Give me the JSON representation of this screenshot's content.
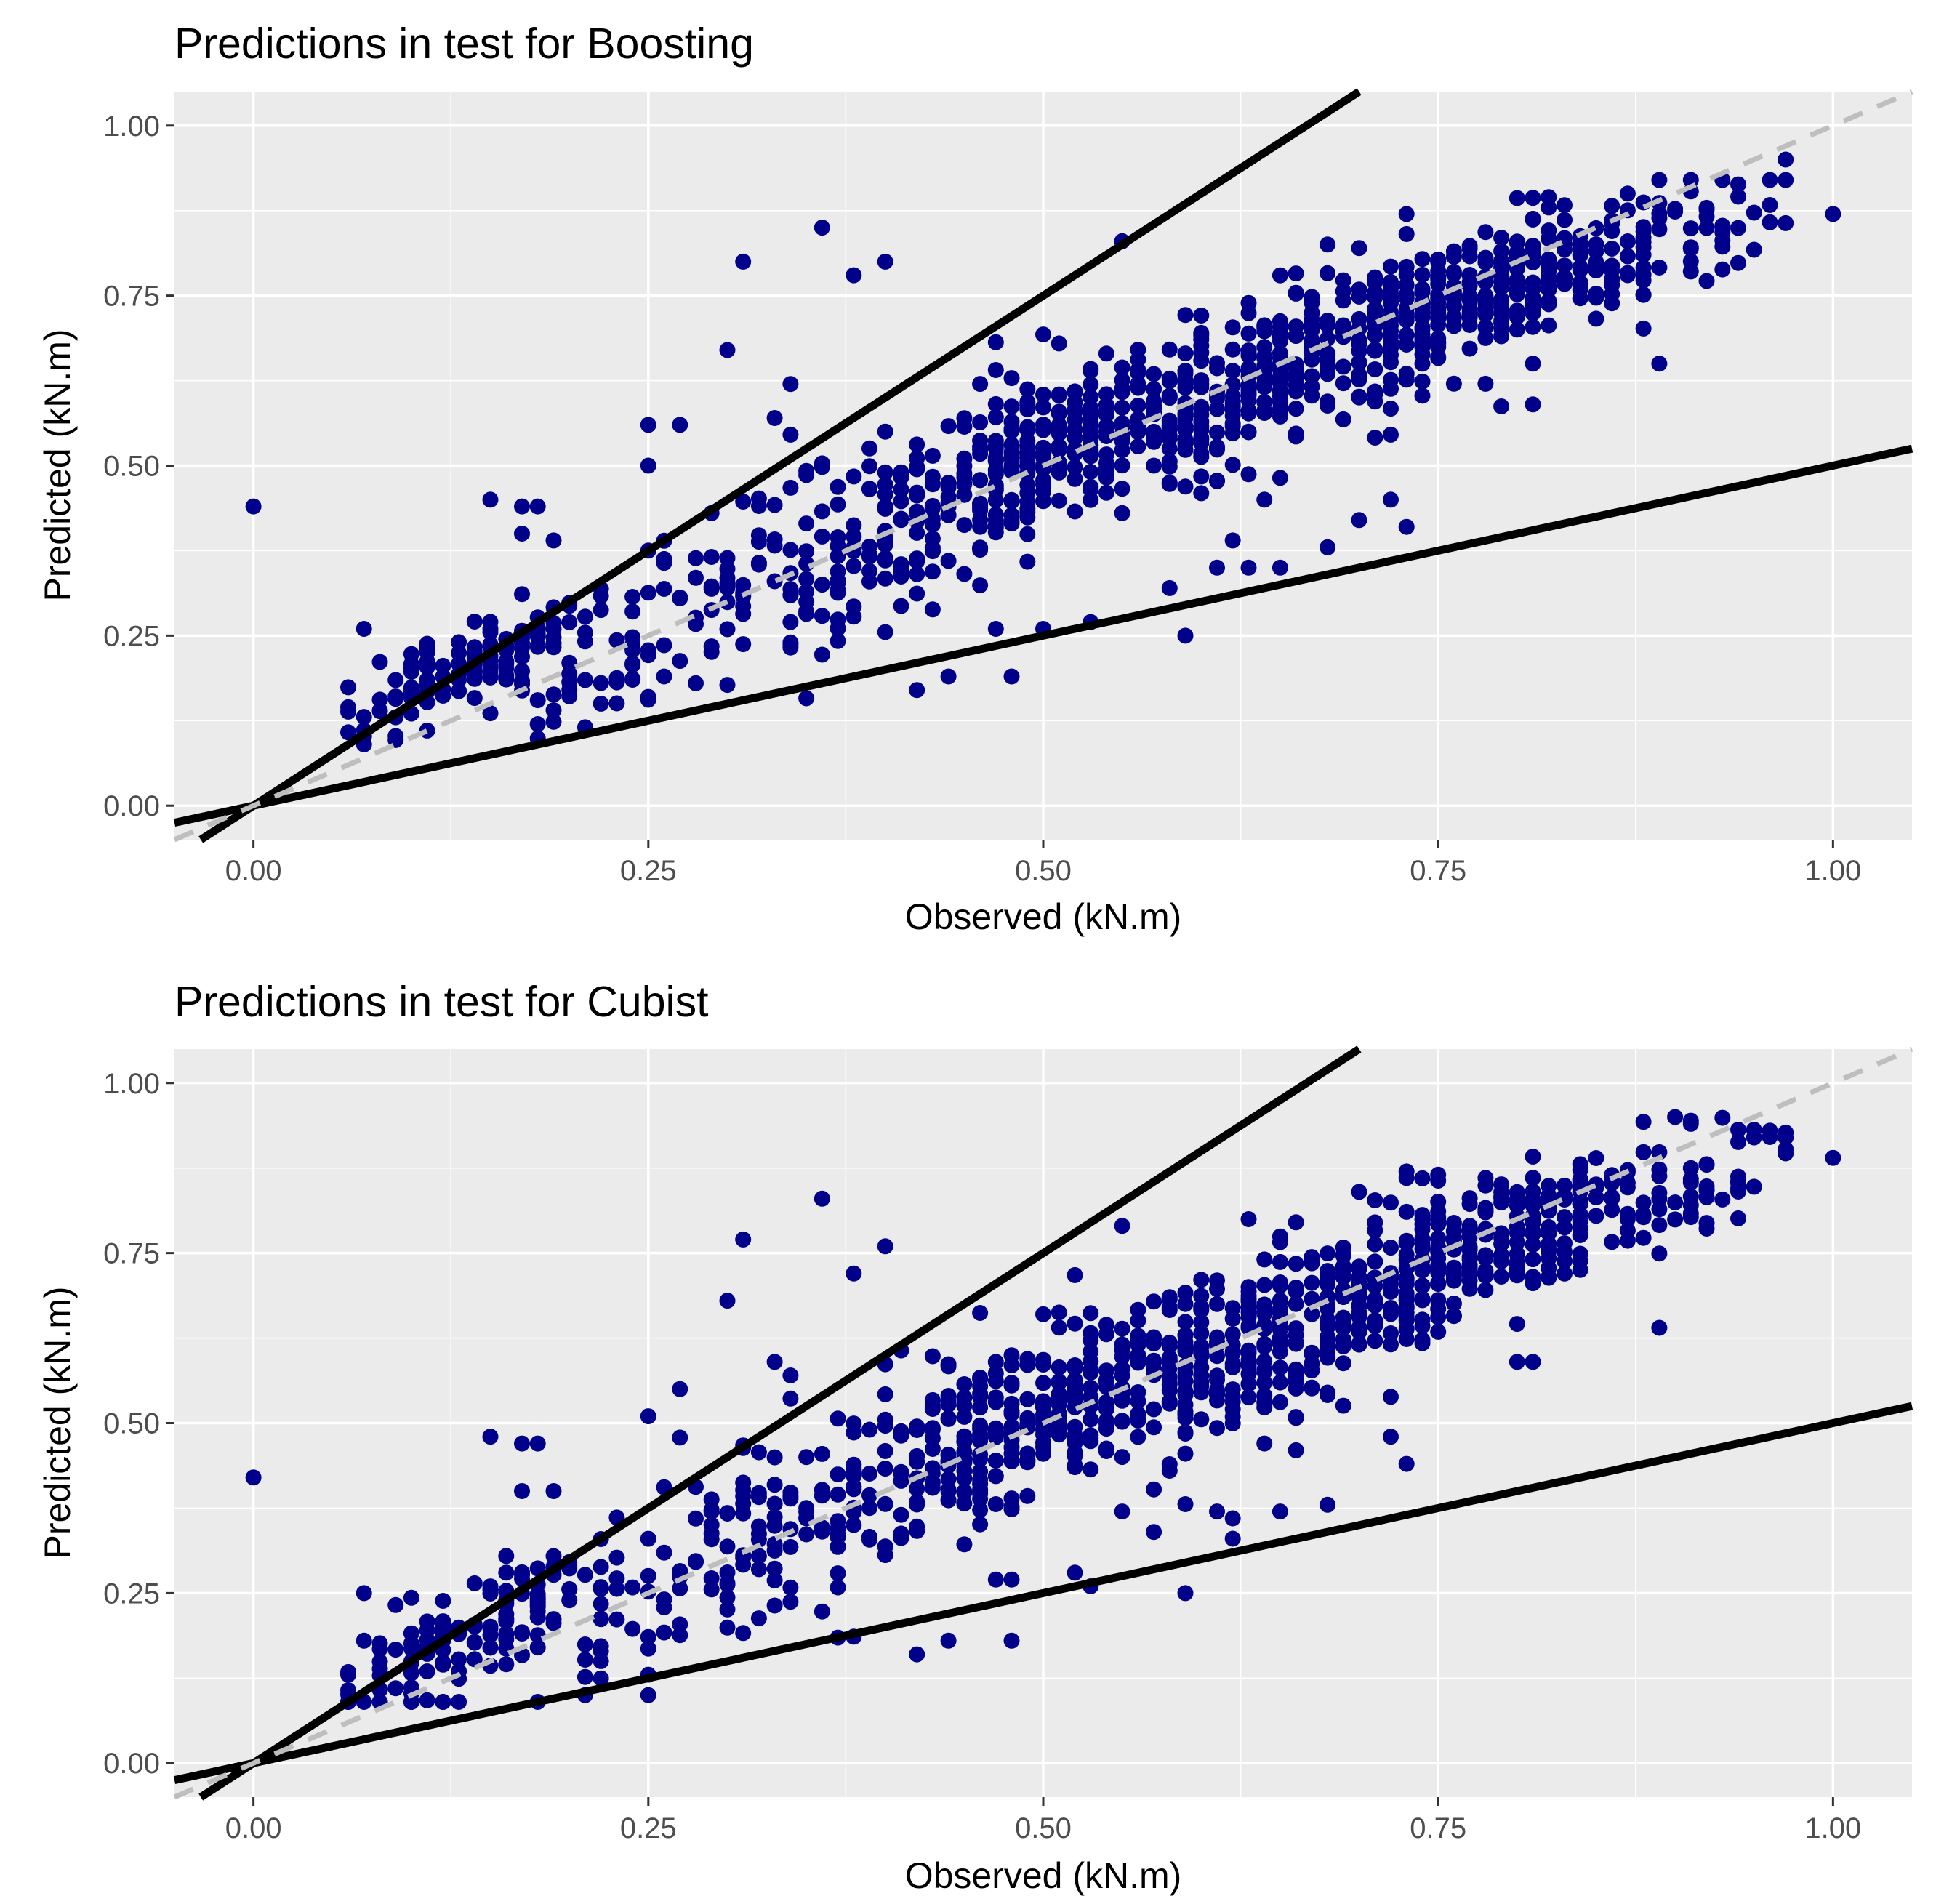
{
  "colors": {
    "panel_background": "#EBEBEB",
    "grid": "#FFFFFF",
    "points": "#00008B",
    "bound_lines": "#000000",
    "identity_line": "#BEBEBE",
    "tick_text": "#4D4D4D"
  },
  "chart_data": [
    {
      "type": "scatter",
      "title": "Predictions in test for Boosting",
      "xlabel": "Observed (kN.m)",
      "ylabel": "Predicted (kN.m)",
      "xlim": [
        -0.05,
        1.05
      ],
      "ylim": [
        -0.05,
        1.05
      ],
      "xticks": [
        0,
        0.25,
        0.5,
        0.75,
        1.0
      ],
      "xtick_labels": [
        "0.00",
        "0.25",
        "0.50",
        "0.75",
        "1.00"
      ],
      "yticks": [
        0,
        0.25,
        0.5,
        0.75,
        1.0
      ],
      "ytick_labels": [
        "0.00",
        "0.25",
        "0.50",
        "0.75",
        "1.00"
      ],
      "grid": true,
      "reference_lines": [
        {
          "name": "upper bound",
          "slope": 1.5,
          "intercept": 0,
          "style": "solid"
        },
        {
          "name": "lower bound",
          "slope": 0.5,
          "intercept": 0,
          "style": "solid"
        },
        {
          "name": "identity",
          "slope": 1.0,
          "intercept": 0,
          "style": "dashed"
        }
      ],
      "outliers": [
        [
          0.0,
          0.44
        ],
        [
          0.07,
          0.26
        ],
        [
          0.15,
          0.45
        ],
        [
          0.17,
          0.44
        ],
        [
          0.18,
          0.44
        ],
        [
          0.19,
          0.39
        ],
        [
          0.17,
          0.4
        ],
        [
          0.25,
          0.56
        ],
        [
          0.25,
          0.5
        ],
        [
          0.27,
          0.56
        ],
        [
          0.3,
          0.67
        ],
        [
          0.31,
          0.8
        ],
        [
          0.36,
          0.85
        ],
        [
          0.38,
          0.78
        ],
        [
          0.4,
          0.8
        ],
        [
          0.33,
          0.57
        ],
        [
          0.34,
          0.62
        ],
        [
          0.42,
          0.17
        ],
        [
          0.44,
          0.19
        ],
        [
          0.48,
          0.19
        ],
        [
          0.47,
          0.26
        ],
        [
          0.5,
          0.26
        ],
        [
          0.53,
          0.27
        ],
        [
          0.59,
          0.25
        ],
        [
          0.58,
          0.32
        ],
        [
          0.65,
          0.35
        ],
        [
          0.68,
          0.38
        ],
        [
          0.73,
          0.41
        ],
        [
          0.72,
          0.45
        ],
        [
          0.55,
          0.83
        ],
        [
          0.89,
          0.65
        ],
        [
          0.81,
          0.65
        ],
        [
          0.81,
          0.59
        ],
        [
          0.65,
          0.61
        ],
        [
          0.7,
          0.82
        ],
        [
          0.73,
          0.87
        ],
        [
          1.0,
          0.87
        ],
        [
          0.97,
          0.92
        ],
        [
          0.96,
          0.92
        ],
        [
          0.93,
          0.92
        ],
        [
          0.91,
          0.92
        ],
        [
          0.87,
          0.9
        ],
        [
          0.89,
          0.92
        ],
        [
          0.08,
          0.14
        ],
        [
          0.09,
          0.13
        ],
        [
          0.18,
          0.12
        ],
        [
          0.2,
          0.21
        ],
        [
          0.22,
          0.15
        ],
        [
          0.25,
          0.16
        ],
        [
          0.26,
          0.19
        ],
        [
          0.28,
          0.18
        ],
        [
          0.35,
          0.3
        ],
        [
          0.4,
          0.55
        ],
        [
          0.46,
          0.41
        ],
        [
          0.62,
          0.39
        ],
        [
          0.61,
          0.35
        ],
        [
          0.63,
          0.35
        ],
        [
          0.57,
          0.5
        ],
        [
          0.64,
          0.45
        ],
        [
          0.7,
          0.42
        ]
      ],
      "clusters": [
        {
          "cx": 0.11,
          "cy": 0.17,
          "sx": 0.035,
          "sy": 0.035,
          "slope": 0.9,
          "n": 70
        },
        {
          "cx": 0.17,
          "cy": 0.24,
          "sx": 0.025,
          "sy": 0.03,
          "slope": 0.9,
          "n": 45
        },
        {
          "cx": 0.25,
          "cy": 0.26,
          "sx": 0.045,
          "sy": 0.06,
          "slope": 1.0,
          "n": 60
        },
        {
          "cx": 0.35,
          "cy": 0.35,
          "sx": 0.045,
          "sy": 0.075,
          "slope": 1.0,
          "n": 85
        },
        {
          "cx": 0.44,
          "cy": 0.45,
          "sx": 0.04,
          "sy": 0.065,
          "slope": 1.0,
          "n": 100
        },
        {
          "cx": 0.5,
          "cy": 0.52,
          "sx": 0.035,
          "sy": 0.06,
          "slope": 0.9,
          "n": 120
        },
        {
          "cx": 0.58,
          "cy": 0.57,
          "sx": 0.04,
          "sy": 0.06,
          "slope": 0.9,
          "n": 130
        },
        {
          "cx": 0.65,
          "cy": 0.64,
          "sx": 0.04,
          "sy": 0.06,
          "slope": 0.9,
          "n": 160
        },
        {
          "cx": 0.73,
          "cy": 0.72,
          "sx": 0.03,
          "sy": 0.06,
          "slope": 0.8,
          "n": 150
        },
        {
          "cx": 0.79,
          "cy": 0.77,
          "sx": 0.03,
          "sy": 0.045,
          "slope": 0.7,
          "n": 110
        },
        {
          "cx": 0.87,
          "cy": 0.81,
          "sx": 0.045,
          "sy": 0.045,
          "slope": 0.7,
          "n": 90
        }
      ]
    },
    {
      "type": "scatter",
      "title": "Predictions in test for Cubist",
      "xlabel": "Observed (kN.m)",
      "ylabel": "Predicted (kN.m)",
      "xlim": [
        -0.05,
        1.05
      ],
      "ylim": [
        -0.05,
        1.05
      ],
      "xticks": [
        0,
        0.25,
        0.5,
        0.75,
        1.0
      ],
      "xtick_labels": [
        "0.00",
        "0.25",
        "0.50",
        "0.75",
        "1.00"
      ],
      "yticks": [
        0,
        0.25,
        0.5,
        0.75,
        1.0
      ],
      "ytick_labels": [
        "0.00",
        "0.25",
        "0.50",
        "0.75",
        "1.00"
      ],
      "grid": true,
      "reference_lines": [
        {
          "name": "upper bound",
          "slope": 1.5,
          "intercept": 0,
          "style": "solid"
        },
        {
          "name": "lower bound",
          "slope": 0.5,
          "intercept": 0,
          "style": "solid"
        },
        {
          "name": "identity",
          "slope": 1.0,
          "intercept": 0,
          "style": "dashed"
        }
      ],
      "outliers": [
        [
          0.0,
          0.42
        ],
        [
          0.07,
          0.25
        ],
        [
          0.15,
          0.48
        ],
        [
          0.17,
          0.47
        ],
        [
          0.18,
          0.47
        ],
        [
          0.19,
          0.4
        ],
        [
          0.17,
          0.4
        ],
        [
          0.25,
          0.51
        ],
        [
          0.27,
          0.55
        ],
        [
          0.3,
          0.68
        ],
        [
          0.31,
          0.77
        ],
        [
          0.36,
          0.83
        ],
        [
          0.38,
          0.72
        ],
        [
          0.4,
          0.76
        ],
        [
          0.33,
          0.59
        ],
        [
          0.34,
          0.57
        ],
        [
          0.42,
          0.16
        ],
        [
          0.44,
          0.18
        ],
        [
          0.48,
          0.18
        ],
        [
          0.47,
          0.27
        ],
        [
          0.48,
          0.27
        ],
        [
          0.52,
          0.28
        ],
        [
          0.53,
          0.26
        ],
        [
          0.59,
          0.25
        ],
        [
          0.57,
          0.34
        ],
        [
          0.62,
          0.33
        ],
        [
          0.65,
          0.37
        ],
        [
          0.68,
          0.38
        ],
        [
          0.73,
          0.44
        ],
        [
          0.72,
          0.48
        ],
        [
          0.55,
          0.79
        ],
        [
          0.89,
          0.64
        ],
        [
          0.81,
          0.59
        ],
        [
          0.8,
          0.59
        ],
        [
          0.7,
          0.84
        ],
        [
          0.73,
          0.87
        ],
        [
          1.0,
          0.89
        ],
        [
          0.97,
          0.92
        ],
        [
          0.96,
          0.93
        ],
        [
          0.95,
          0.92
        ],
        [
          0.9,
          0.95
        ],
        [
          0.91,
          0.94
        ],
        [
          0.08,
          0.09
        ],
        [
          0.1,
          0.09
        ],
        [
          0.18,
          0.09
        ],
        [
          0.21,
          0.1
        ],
        [
          0.25,
          0.1
        ],
        [
          0.25,
          0.13
        ],
        [
          0.22,
          0.15
        ],
        [
          0.06,
          0.13
        ],
        [
          0.46,
          0.4
        ],
        [
          0.55,
          0.37
        ],
        [
          0.58,
          0.43
        ],
        [
          0.61,
          0.37
        ],
        [
          0.66,
          0.46
        ],
        [
          0.62,
          0.36
        ],
        [
          0.64,
          0.47
        ]
      ],
      "clusters": [
        {
          "cx": 0.1,
          "cy": 0.14,
          "sx": 0.03,
          "sy": 0.04,
          "slope": 1.0,
          "n": 55
        },
        {
          "cx": 0.16,
          "cy": 0.22,
          "sx": 0.03,
          "sy": 0.035,
          "slope": 1.0,
          "n": 60
        },
        {
          "cx": 0.25,
          "cy": 0.26,
          "sx": 0.045,
          "sy": 0.06,
          "slope": 1.0,
          "n": 60
        },
        {
          "cx": 0.34,
          "cy": 0.35,
          "sx": 0.045,
          "sy": 0.07,
          "slope": 1.0,
          "n": 85
        },
        {
          "cx": 0.44,
          "cy": 0.45,
          "sx": 0.04,
          "sy": 0.065,
          "slope": 1.0,
          "n": 100
        },
        {
          "cx": 0.5,
          "cy": 0.53,
          "sx": 0.035,
          "sy": 0.06,
          "slope": 0.9,
          "n": 120
        },
        {
          "cx": 0.58,
          "cy": 0.58,
          "sx": 0.04,
          "sy": 0.06,
          "slope": 0.9,
          "n": 130
        },
        {
          "cx": 0.65,
          "cy": 0.64,
          "sx": 0.04,
          "sy": 0.06,
          "slope": 0.9,
          "n": 160
        },
        {
          "cx": 0.73,
          "cy": 0.71,
          "sx": 0.03,
          "sy": 0.06,
          "slope": 0.8,
          "n": 150
        },
        {
          "cx": 0.8,
          "cy": 0.78,
          "sx": 0.03,
          "sy": 0.045,
          "slope": 0.7,
          "n": 110
        },
        {
          "cx": 0.88,
          "cy": 0.83,
          "sx": 0.045,
          "sy": 0.045,
          "slope": 0.7,
          "n": 90
        }
      ]
    }
  ]
}
